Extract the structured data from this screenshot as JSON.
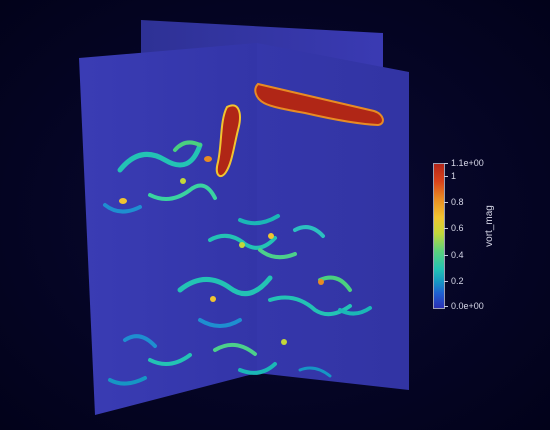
{
  "scalar_bar": {
    "title": "vort_mag",
    "max_label": "1.1e+00",
    "min_label": "0.0e+00",
    "ticks": [
      "1",
      "0.8",
      "0.6",
      "0.4",
      "0.2"
    ]
  },
  "colors": {
    "slice_base": "#3436a6",
    "high_vorticity": "#b02616",
    "mid_vorticity": "#25c3b0",
    "background": "#040420"
  }
}
